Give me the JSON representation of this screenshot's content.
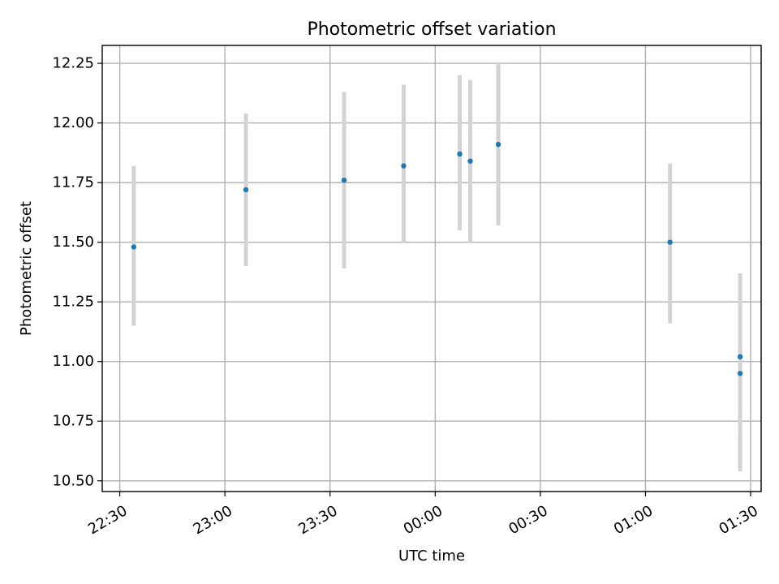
{
  "chart_data": {
    "type": "scatter",
    "title": "Photometric offset variation",
    "xlabel": "UTC time",
    "ylabel": "Photometric offset",
    "x_axis_kind": "time",
    "xlim": [
      "22:25",
      "01:33"
    ],
    "ylim": [
      10.455,
      12.325
    ],
    "grid": true,
    "x_ticks": [
      {
        "value": "22:30",
        "label": "22:30"
      },
      {
        "value": "23:00",
        "label": "23:00"
      },
      {
        "value": "23:30",
        "label": "23:30"
      },
      {
        "value": "00:00",
        "label": "00:00"
      },
      {
        "value": "00:30",
        "label": "00:30"
      },
      {
        "value": "01:00",
        "label": "01:00"
      },
      {
        "value": "01:30",
        "label": "01:30"
      }
    ],
    "y_ticks": [
      {
        "value": 10.5,
        "label": "10.50"
      },
      {
        "value": 10.75,
        "label": "10.75"
      },
      {
        "value": 11.0,
        "label": "11.00"
      },
      {
        "value": 11.25,
        "label": "11.25"
      },
      {
        "value": 11.5,
        "label": "11.50"
      },
      {
        "value": 11.75,
        "label": "11.75"
      },
      {
        "value": 12.0,
        "label": "12.00"
      },
      {
        "value": 12.25,
        "label": "12.25"
      }
    ],
    "series": [
      {
        "points": [
          {
            "x": "22:34",
            "y": 11.48,
            "err_low": 11.15,
            "err_high": 11.82
          },
          {
            "x": "23:06",
            "y": 11.72,
            "err_low": 11.4,
            "err_high": 12.04
          },
          {
            "x": "23:34",
            "y": 11.76,
            "err_low": 11.39,
            "err_high": 12.13
          },
          {
            "x": "23:51",
            "y": 11.82,
            "err_low": 11.5,
            "err_high": 12.16
          },
          {
            "x": "00:07",
            "y": 11.87,
            "err_low": 11.55,
            "err_high": 12.2
          },
          {
            "x": "00:10",
            "y": 11.84,
            "err_low": 11.5,
            "err_high": 12.18
          },
          {
            "x": "00:18",
            "y": 11.91,
            "err_low": 11.57,
            "err_high": 12.25
          },
          {
            "x": "01:07",
            "y": 11.5,
            "err_low": 11.16,
            "err_high": 11.83
          },
          {
            "x": "01:27",
            "y": 10.95,
            "err_low": 10.54,
            "err_high": 11.37
          },
          {
            "x": "01:27",
            "y": 11.02,
            "err_low": 10.69,
            "err_high": 11.36
          }
        ]
      }
    ],
    "colors": {
      "point": "#1f77b4",
      "error_bar": "#d3d3d3",
      "grid": "#b0b0b0"
    }
  }
}
